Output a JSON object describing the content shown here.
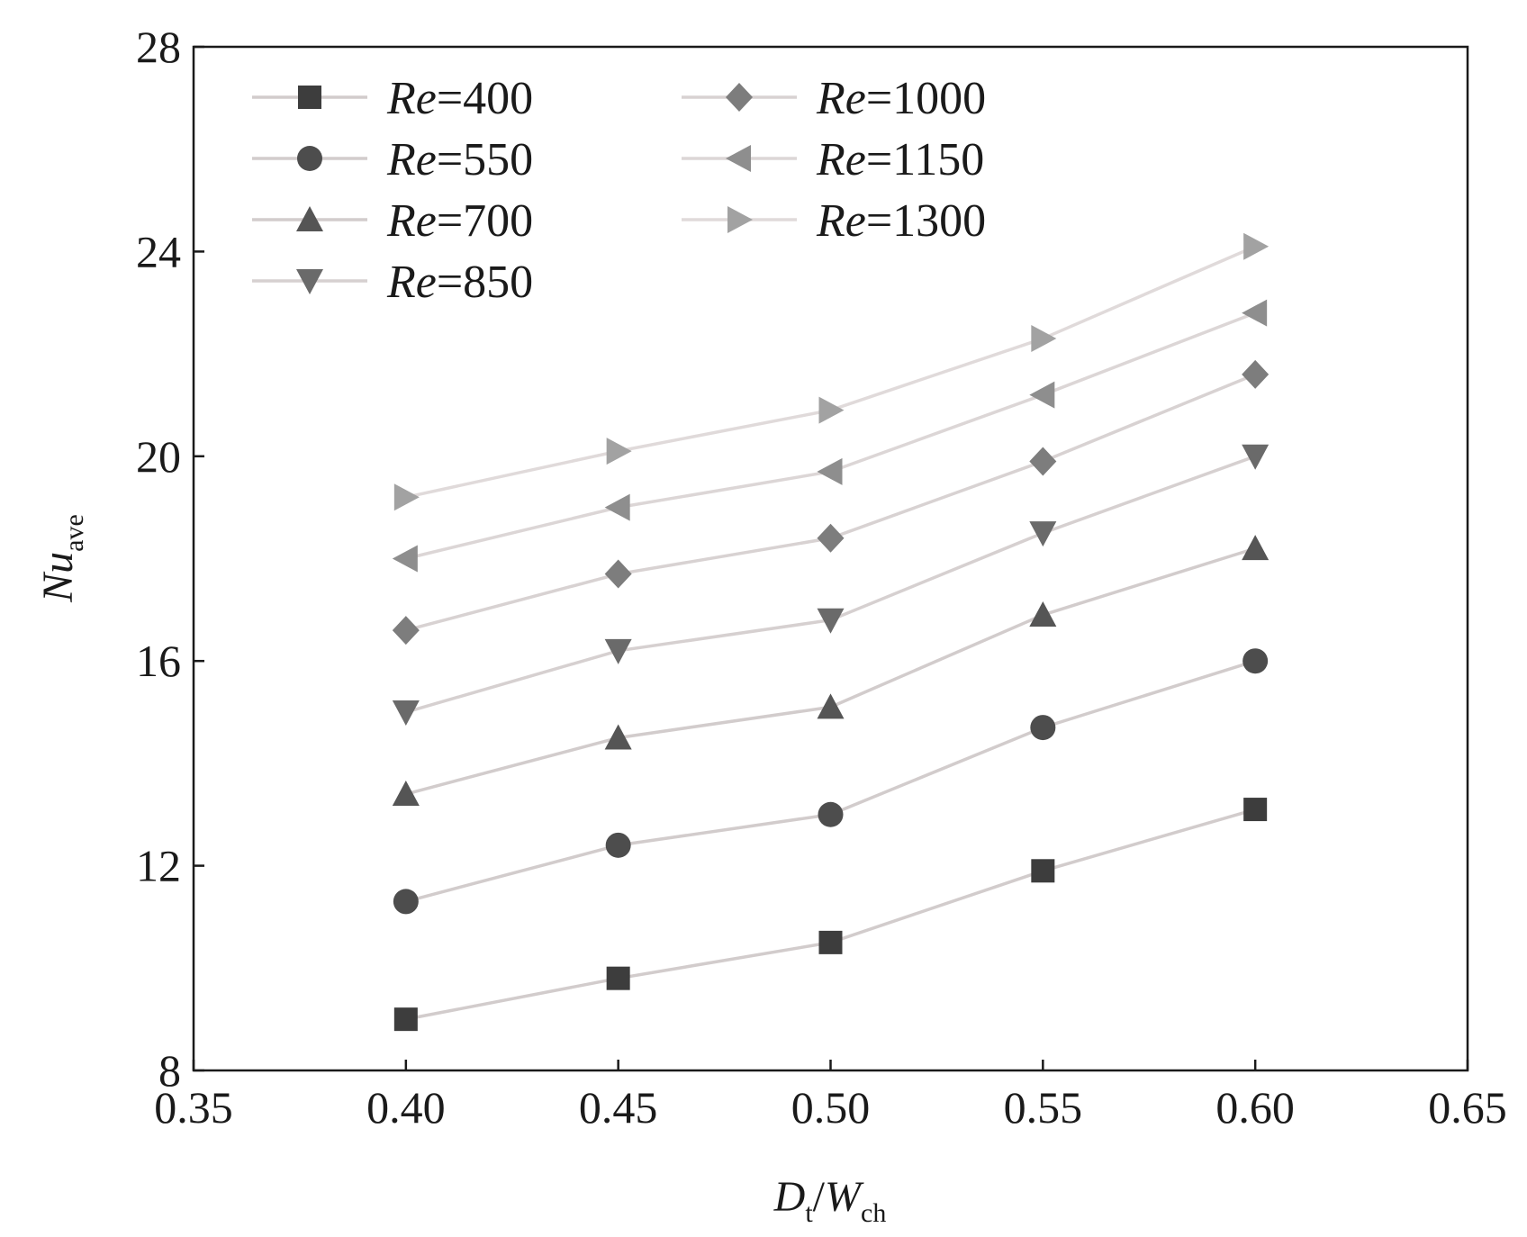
{
  "chart_data": {
    "type": "line",
    "title": "",
    "xlabel": {
      "main": "D",
      "sub1": "t",
      "slash": "/",
      "main2": "W",
      "sub2": "ch"
    },
    "ylabel": {
      "main": "Nu",
      "sub": "ave"
    },
    "xlim": [
      0.35,
      0.65
    ],
    "ylim": [
      8,
      28
    ],
    "xticks": [
      0.35,
      0.4,
      0.45,
      0.5,
      0.55,
      0.6,
      0.65
    ],
    "xtick_labels": [
      "0.35",
      "0.40",
      "0.45",
      "0.50",
      "0.55",
      "0.60",
      "0.65"
    ],
    "yticks": [
      8,
      12,
      16,
      20,
      24,
      28
    ],
    "ytick_labels": [
      "8",
      "12",
      "16",
      "20",
      "24",
      "28"
    ],
    "grid": false,
    "legend_position": "top-left",
    "x": [
      0.4,
      0.45,
      0.5,
      0.55,
      0.6
    ],
    "series": [
      {
        "name": "Re=400",
        "name_italic": "Re",
        "name_rest": "=400",
        "marker": "square",
        "marker_color": "#3d3d3d",
        "line_color": "#d2cccc",
        "values": [
          9.0,
          9.8,
          10.5,
          11.9,
          13.1
        ]
      },
      {
        "name": "Re=550",
        "name_italic": "Re",
        "name_rest": "=550",
        "marker": "circle",
        "marker_color": "#4d4d4d",
        "line_color": "#d2cccc",
        "values": [
          11.3,
          12.4,
          13.0,
          14.7,
          16.0
        ]
      },
      {
        "name": "Re=700",
        "name_italic": "Re",
        "name_rest": "=700",
        "marker": "triangle-up",
        "marker_color": "#555555",
        "line_color": "#d2cccc",
        "values": [
          13.4,
          14.5,
          15.1,
          16.9,
          18.2
        ]
      },
      {
        "name": "Re=850",
        "name_italic": "Re",
        "name_rest": "=850",
        "marker": "triangle-down",
        "marker_color": "#6a6a6a",
        "line_color": "#d6d0d0",
        "values": [
          15.0,
          16.2,
          16.8,
          18.5,
          20.0
        ]
      },
      {
        "name": "Re=1000",
        "name_italic": "Re",
        "name_rest": "=1000",
        "marker": "diamond",
        "marker_color": "#7d7d7d",
        "line_color": "#d8d2d2",
        "values": [
          16.6,
          17.7,
          18.4,
          19.9,
          21.6
        ]
      },
      {
        "name": "Re=1150",
        "name_italic": "Re",
        "name_rest": "=1150",
        "marker": "triangle-left",
        "marker_color": "#8e8e8e",
        "line_color": "#dcd6d6",
        "values": [
          18.0,
          19.0,
          19.7,
          21.2,
          22.8
        ]
      },
      {
        "name": "Re=1300",
        "name_italic": "Re",
        "name_rest": "=1300",
        "marker": "triangle-right",
        "marker_color": "#a2a2a2",
        "line_color": "#e0dada",
        "values": [
          19.2,
          20.1,
          20.9,
          22.3,
          24.1
        ]
      }
    ]
  }
}
